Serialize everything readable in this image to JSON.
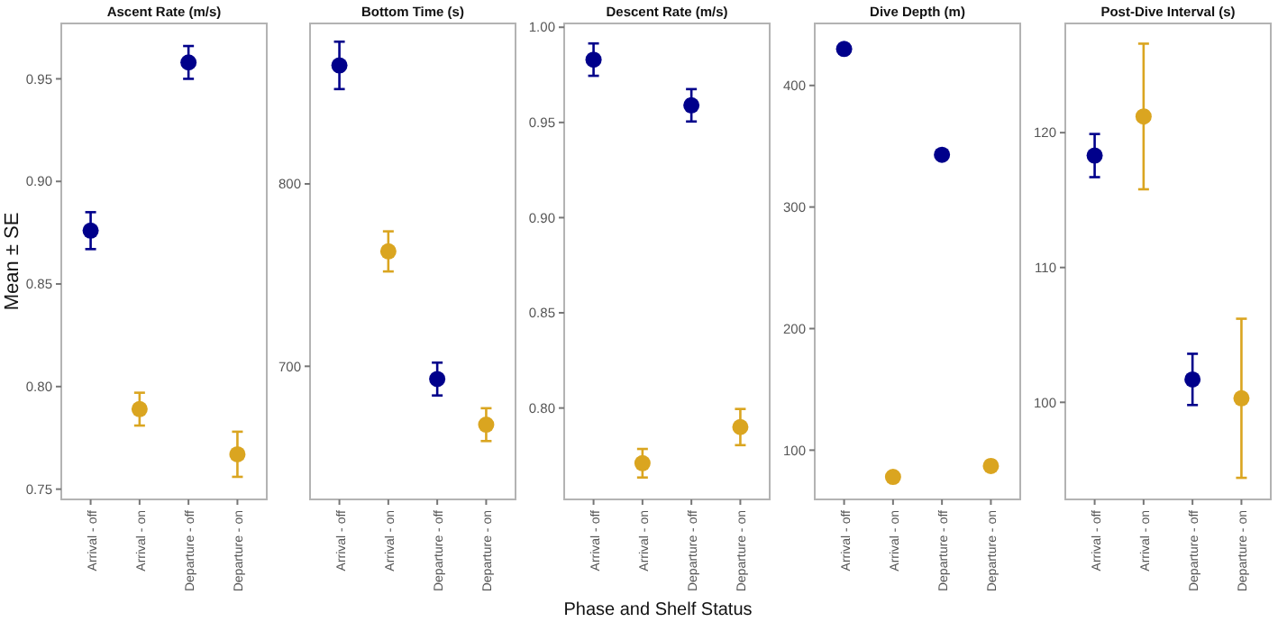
{
  "chart_data": [
    {
      "type": "scatter",
      "title": "Ascent Rate (m/s)",
      "ylabel": "Mean ± SE",
      "categories": [
        "Arrival - off",
        "Arrival - on",
        "Departure - off",
        "Departure - on"
      ],
      "values": [
        0.876,
        0.789,
        0.958,
        0.767
      ],
      "errors": [
        0.009,
        0.008,
        0.008,
        0.011
      ],
      "colors": [
        "#00008b",
        "#daa520",
        "#00008b",
        "#daa520"
      ],
      "ylim": [
        0.745,
        0.977
      ],
      "yticks": [
        {
          "value": 0.75,
          "label": "0.75"
        },
        {
          "value": 0.8,
          "label": "0.80"
        },
        {
          "value": 0.85,
          "label": "0.85"
        },
        {
          "value": 0.9,
          "label": "0.90"
        },
        {
          "value": 0.95,
          "label": "0.95"
        }
      ],
      "marker": "circle",
      "grid": false
    },
    {
      "type": "scatter",
      "title": "Bottom Time (s)",
      "categories": [
        "Arrival - off",
        "Arrival - on",
        "Departure - off",
        "Departure - on"
      ],
      "values": [
        865,
        763,
        693,
        668
      ],
      "errors": [
        13,
        11,
        9,
        9
      ],
      "colors": [
        "#00008b",
        "#daa520",
        "#00008b",
        "#daa520"
      ],
      "ylim": [
        627,
        888
      ],
      "yticks": [
        700,
        800
      ],
      "marker": "circle",
      "grid": false
    },
    {
      "type": "scatter",
      "title": "Descent Rate (m/s)",
      "xlabel": "Phase and Shelf Status",
      "categories": [
        "Arrival - off",
        "Arrival - on",
        "Departure - off",
        "Departure - on"
      ],
      "values": [
        0.983,
        0.771,
        0.959,
        0.79
      ],
      "errors": [
        0.0085,
        0.0075,
        0.0085,
        0.0095
      ],
      "colors": [
        "#00008b",
        "#daa520",
        "#00008b",
        "#daa520"
      ],
      "ylim": [
        0.752,
        1.002
      ],
      "yticks": [
        {
          "value": 0.8,
          "label": "0.80"
        },
        {
          "value": 0.85,
          "label": "0.85"
        },
        {
          "value": 0.9,
          "label": "0.90"
        },
        {
          "value": 0.95,
          "label": "0.95"
        },
        {
          "value": 1.0,
          "label": "1.00"
        }
      ],
      "marker": "circle",
      "grid": false
    },
    {
      "type": "scatter",
      "title": "Dive Depth (m)",
      "categories": [
        "Arrival - off",
        "Arrival - on",
        "Departure - off",
        "Departure - on"
      ],
      "values": [
        430,
        78,
        343,
        87
      ],
      "errors": [
        4,
        1,
        2,
        1
      ],
      "colors": [
        "#00008b",
        "#daa520",
        "#00008b",
        "#daa520"
      ],
      "ylim": [
        59.5,
        451
      ],
      "yticks": [
        100,
        200,
        300,
        400
      ],
      "marker": "circle",
      "grid": false
    },
    {
      "type": "scatter",
      "title": "Post-Dive Interval (s)",
      "categories": [
        "Arrival - off",
        "Arrival - on",
        "Departure - off",
        "Departure - on"
      ],
      "values": [
        118.3,
        121.2,
        101.7,
        100.3
      ],
      "errors": [
        1.6,
        5.4,
        1.9,
        5.9
      ],
      "colors": [
        "#00008b",
        "#daa520",
        "#00008b",
        "#daa520"
      ],
      "ylim": [
        92.8,
        128.1
      ],
      "yticks": [
        100,
        110,
        120
      ],
      "marker": "circle",
      "grid": false
    }
  ]
}
